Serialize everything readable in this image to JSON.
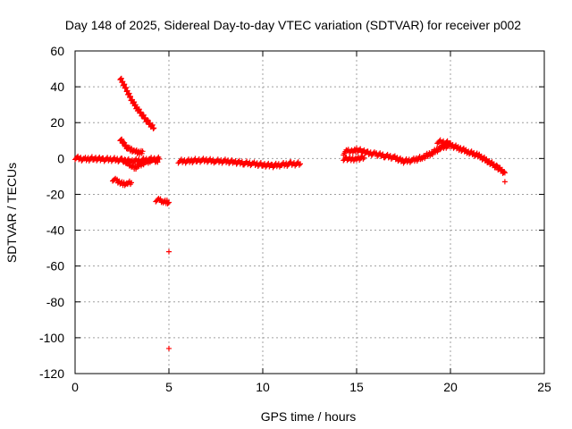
{
  "chart_data": {
    "type": "scatter",
    "title": "Day 148 of 2025, Sidereal Day-to-day VTEC variation (SDTVAR) for receiver p002",
    "xlabel": "GPS time / hours",
    "ylabel": "SDTVAR / TECUs",
    "xlim": [
      0,
      25
    ],
    "ylim": [
      -120,
      60
    ],
    "xticks": [
      "0",
      "5",
      "10",
      "15",
      "20",
      "25"
    ],
    "yticks": [
      "60",
      "40",
      "20",
      "0",
      "-20",
      "-40",
      "-60",
      "-80",
      "-100",
      "-120"
    ],
    "grid": true,
    "marker": "+",
    "color": "#ff0000",
    "series": [
      {
        "name": "SDTVAR",
        "segments": [
          {
            "x": [
              0.0,
              0.5,
              1.0,
              1.5,
              2.0,
              2.5,
              3.0,
              3.5,
              4.0,
              4.5
            ],
            "y": [
              0.5,
              -0.5,
              0.0,
              -0.5,
              -0.5,
              -1.0,
              -1.5,
              -1.0,
              -0.5,
              -0.3
            ]
          },
          {
            "x": [
              2.4,
              2.7,
              3.0,
              3.3,
              3.6,
              3.9,
              4.2
            ],
            "y": [
              45,
              39,
              33,
              28,
              24,
              20,
              17
            ]
          },
          {
            "x": [
              2.4,
              2.6,
              2.8,
              3.0,
              3.2,
              3.4,
              3.6
            ],
            "y": [
              11,
              8,
              6,
              5,
              4,
              3,
              4
            ]
          },
          {
            "x": [
              2.6,
              2.8,
              3.0,
              3.2,
              3.4,
              3.6,
              3.8,
              4.0,
              4.2,
              4.4
            ],
            "y": [
              -1,
              -3,
              -4,
              -5,
              -4,
              -3,
              -2,
              -1,
              -1,
              -2
            ]
          },
          {
            "x": [
              2.0,
              2.2,
              2.4,
              2.6,
              2.8,
              3.0
            ],
            "y": [
              -11.5,
              -12.5,
              -13.5,
              -14,
              -14,
              -13.5
            ]
          },
          {
            "x": [
              4.3,
              4.5,
              4.7,
              4.9,
              5.0
            ],
            "y": [
              -23,
              -23.5,
              -24,
              -24,
              -24.5
            ]
          },
          {
            "x": [
              5.0
            ],
            "y": [
              -52
            ]
          },
          {
            "x": [
              5.0
            ],
            "y": [
              -106
            ]
          },
          {
            "x": [
              5.5,
              6.0,
              6.5,
              7.0,
              7.5,
              8.0,
              8.5,
              9.0,
              9.5,
              10.0,
              10.5,
              11.0,
              11.5,
              12.0
            ],
            "y": [
              -1.5,
              -1.5,
              -1.0,
              -1.0,
              -1.5,
              -1.5,
              -2.0,
              -2.5,
              -3.0,
              -3.5,
              -4.0,
              -3.5,
              -3.0,
              -3.0
            ]
          },
          {
            "x": [
              14.3,
              14.5,
              14.8,
              15.0,
              15.3,
              15.6,
              16.0,
              16.5,
              17.0,
              17.5
            ],
            "y": [
              3.0,
              4.0,
              4.0,
              5.0,
              4.0,
              3.0,
              2.5,
              1.5,
              0.5,
              -1.5
            ]
          },
          {
            "x": [
              14.3,
              14.6,
              15.0,
              15.4
            ],
            "y": [
              0.0,
              -0.5,
              0.0,
              0.5
            ]
          },
          {
            "x": [
              17.5,
              18.0,
              18.5,
              19.0,
              19.5,
              20.0,
              20.5,
              21.0,
              21.5,
              22.0,
              22.5,
              22.9
            ],
            "y": [
              -1.5,
              -1.0,
              0.5,
              3.0,
              6.0,
              7.5,
              5.5,
              3.5,
              1.5,
              -1.5,
              -5.0,
              -8.0
            ]
          },
          {
            "x": [
              19.3,
              20.0
            ],
            "y": [
              9.5,
              8.5
            ]
          },
          {
            "x": [
              22.9
            ],
            "y": [
              -13
            ]
          }
        ]
      }
    ]
  }
}
